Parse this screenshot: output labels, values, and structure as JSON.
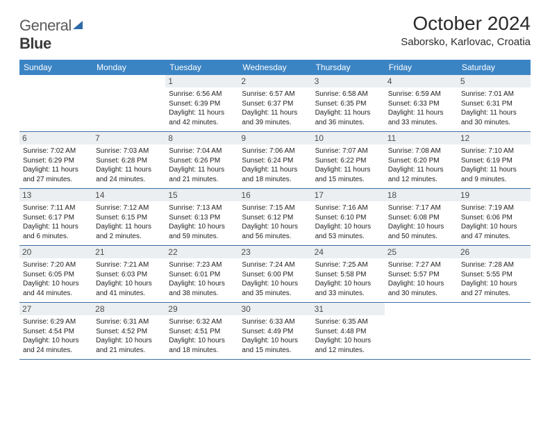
{
  "brand": {
    "name1": "General",
    "name2": "Blue"
  },
  "title": "October 2024",
  "location": "Saborsko, Karlovac, Croatia",
  "colors": {
    "header_bg": "#3b84c4",
    "header_text": "#ffffff",
    "week_border": "#3b6fa3",
    "daynum_bg": "#eceff1",
    "sail": "#2f6aa8"
  },
  "day_headers": [
    "Sunday",
    "Monday",
    "Tuesday",
    "Wednesday",
    "Thursday",
    "Friday",
    "Saturday"
  ],
  "weeks": [
    [
      {
        "n": "",
        "sr": "",
        "ss": "",
        "dl": ""
      },
      {
        "n": "",
        "sr": "",
        "ss": "",
        "dl": ""
      },
      {
        "n": "1",
        "sr": "Sunrise: 6:56 AM",
        "ss": "Sunset: 6:39 PM",
        "dl": "Daylight: 11 hours and 42 minutes."
      },
      {
        "n": "2",
        "sr": "Sunrise: 6:57 AM",
        "ss": "Sunset: 6:37 PM",
        "dl": "Daylight: 11 hours and 39 minutes."
      },
      {
        "n": "3",
        "sr": "Sunrise: 6:58 AM",
        "ss": "Sunset: 6:35 PM",
        "dl": "Daylight: 11 hours and 36 minutes."
      },
      {
        "n": "4",
        "sr": "Sunrise: 6:59 AM",
        "ss": "Sunset: 6:33 PM",
        "dl": "Daylight: 11 hours and 33 minutes."
      },
      {
        "n": "5",
        "sr": "Sunrise: 7:01 AM",
        "ss": "Sunset: 6:31 PM",
        "dl": "Daylight: 11 hours and 30 minutes."
      }
    ],
    [
      {
        "n": "6",
        "sr": "Sunrise: 7:02 AM",
        "ss": "Sunset: 6:29 PM",
        "dl": "Daylight: 11 hours and 27 minutes."
      },
      {
        "n": "7",
        "sr": "Sunrise: 7:03 AM",
        "ss": "Sunset: 6:28 PM",
        "dl": "Daylight: 11 hours and 24 minutes."
      },
      {
        "n": "8",
        "sr": "Sunrise: 7:04 AM",
        "ss": "Sunset: 6:26 PM",
        "dl": "Daylight: 11 hours and 21 minutes."
      },
      {
        "n": "9",
        "sr": "Sunrise: 7:06 AM",
        "ss": "Sunset: 6:24 PM",
        "dl": "Daylight: 11 hours and 18 minutes."
      },
      {
        "n": "10",
        "sr": "Sunrise: 7:07 AM",
        "ss": "Sunset: 6:22 PM",
        "dl": "Daylight: 11 hours and 15 minutes."
      },
      {
        "n": "11",
        "sr": "Sunrise: 7:08 AM",
        "ss": "Sunset: 6:20 PM",
        "dl": "Daylight: 11 hours and 12 minutes."
      },
      {
        "n": "12",
        "sr": "Sunrise: 7:10 AM",
        "ss": "Sunset: 6:19 PM",
        "dl": "Daylight: 11 hours and 9 minutes."
      }
    ],
    [
      {
        "n": "13",
        "sr": "Sunrise: 7:11 AM",
        "ss": "Sunset: 6:17 PM",
        "dl": "Daylight: 11 hours and 6 minutes."
      },
      {
        "n": "14",
        "sr": "Sunrise: 7:12 AM",
        "ss": "Sunset: 6:15 PM",
        "dl": "Daylight: 11 hours and 2 minutes."
      },
      {
        "n": "15",
        "sr": "Sunrise: 7:13 AM",
        "ss": "Sunset: 6:13 PM",
        "dl": "Daylight: 10 hours and 59 minutes."
      },
      {
        "n": "16",
        "sr": "Sunrise: 7:15 AM",
        "ss": "Sunset: 6:12 PM",
        "dl": "Daylight: 10 hours and 56 minutes."
      },
      {
        "n": "17",
        "sr": "Sunrise: 7:16 AM",
        "ss": "Sunset: 6:10 PM",
        "dl": "Daylight: 10 hours and 53 minutes."
      },
      {
        "n": "18",
        "sr": "Sunrise: 7:17 AM",
        "ss": "Sunset: 6:08 PM",
        "dl": "Daylight: 10 hours and 50 minutes."
      },
      {
        "n": "19",
        "sr": "Sunrise: 7:19 AM",
        "ss": "Sunset: 6:06 PM",
        "dl": "Daylight: 10 hours and 47 minutes."
      }
    ],
    [
      {
        "n": "20",
        "sr": "Sunrise: 7:20 AM",
        "ss": "Sunset: 6:05 PM",
        "dl": "Daylight: 10 hours and 44 minutes."
      },
      {
        "n": "21",
        "sr": "Sunrise: 7:21 AM",
        "ss": "Sunset: 6:03 PM",
        "dl": "Daylight: 10 hours and 41 minutes."
      },
      {
        "n": "22",
        "sr": "Sunrise: 7:23 AM",
        "ss": "Sunset: 6:01 PM",
        "dl": "Daylight: 10 hours and 38 minutes."
      },
      {
        "n": "23",
        "sr": "Sunrise: 7:24 AM",
        "ss": "Sunset: 6:00 PM",
        "dl": "Daylight: 10 hours and 35 minutes."
      },
      {
        "n": "24",
        "sr": "Sunrise: 7:25 AM",
        "ss": "Sunset: 5:58 PM",
        "dl": "Daylight: 10 hours and 33 minutes."
      },
      {
        "n": "25",
        "sr": "Sunrise: 7:27 AM",
        "ss": "Sunset: 5:57 PM",
        "dl": "Daylight: 10 hours and 30 minutes."
      },
      {
        "n": "26",
        "sr": "Sunrise: 7:28 AM",
        "ss": "Sunset: 5:55 PM",
        "dl": "Daylight: 10 hours and 27 minutes."
      }
    ],
    [
      {
        "n": "27",
        "sr": "Sunrise: 6:29 AM",
        "ss": "Sunset: 4:54 PM",
        "dl": "Daylight: 10 hours and 24 minutes."
      },
      {
        "n": "28",
        "sr": "Sunrise: 6:31 AM",
        "ss": "Sunset: 4:52 PM",
        "dl": "Daylight: 10 hours and 21 minutes."
      },
      {
        "n": "29",
        "sr": "Sunrise: 6:32 AM",
        "ss": "Sunset: 4:51 PM",
        "dl": "Daylight: 10 hours and 18 minutes."
      },
      {
        "n": "30",
        "sr": "Sunrise: 6:33 AM",
        "ss": "Sunset: 4:49 PM",
        "dl": "Daylight: 10 hours and 15 minutes."
      },
      {
        "n": "31",
        "sr": "Sunrise: 6:35 AM",
        "ss": "Sunset: 4:48 PM",
        "dl": "Daylight: 10 hours and 12 minutes."
      },
      {
        "n": "",
        "sr": "",
        "ss": "",
        "dl": ""
      },
      {
        "n": "",
        "sr": "",
        "ss": "",
        "dl": ""
      }
    ]
  ]
}
